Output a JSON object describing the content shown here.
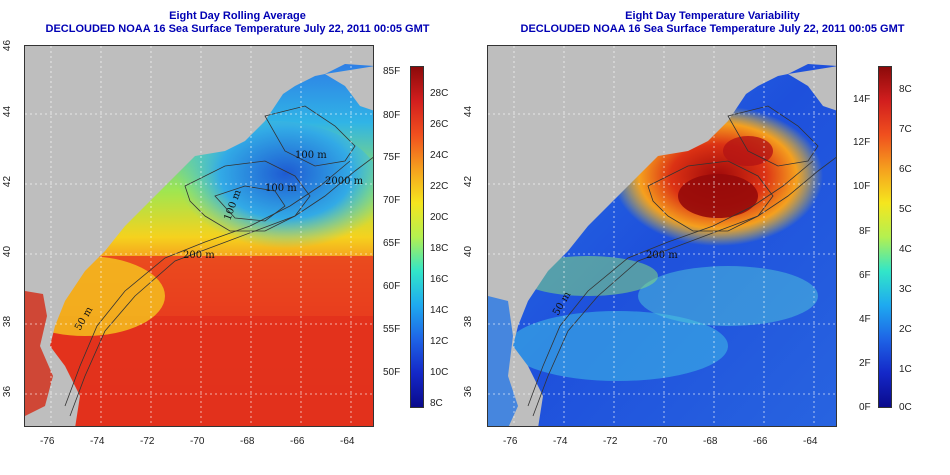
{
  "left_panel": {
    "title_line1": "Eight Day Rolling Average",
    "title_line2": "DECLOUDED NOAA 16 Sea Surface Temperature July 22, 2011 00:05 GMT",
    "lon_ticks": [
      "-76",
      "-74",
      "-72",
      "-70",
      "-68",
      "-66",
      "-64"
    ],
    "lat_ticks": [
      "36",
      "38",
      "40",
      "42",
      "44",
      "46"
    ],
    "colorbar_f": [
      "85F",
      "80F",
      "75F",
      "70F",
      "65F",
      "60F",
      "55F",
      "50F"
    ],
    "colorbar_c": [
      "28C",
      "26C",
      "24C",
      "22C",
      "20C",
      "18C",
      "16C",
      "14C",
      "12C",
      "10C",
      "8C"
    ],
    "contour_labels": [
      "200 m",
      "50 m",
      "100 m",
      "100 m",
      "100 m",
      "2000 m"
    ]
  },
  "right_panel": {
    "title_line1": "Eight Day Temperature Variability",
    "title_line2": "DECLOUDED NOAA 16 Sea Surface Temperature July 22, 2011 00:05 GMT",
    "lon_ticks": [
      "-76",
      "-74",
      "-72",
      "-70",
      "-68",
      "-66",
      "-64"
    ],
    "lat_ticks": [
      "36",
      "38",
      "40",
      "42",
      "44"
    ],
    "colorbar_f": [
      "14F",
      "12F",
      "10F",
      "8F",
      "6F",
      "4F",
      "2F",
      "0F"
    ],
    "colorbar_c": [
      "8C",
      "7C",
      "6C",
      "5C",
      "4C",
      "3C",
      "2C",
      "1C",
      "0C"
    ],
    "contour_labels": [
      "200 m",
      "50 m"
    ]
  },
  "colors": {
    "title": "#0000b4",
    "land": "#bebebe",
    "sst_warm": "#e8321e",
    "sst_mid": "#f5d21e",
    "sst_cool": "#2da0e6",
    "var_low": "#1e50dc",
    "var_high": "#c81414"
  },
  "icons": [
    "grid-lines",
    "bathymetry-contours"
  ]
}
